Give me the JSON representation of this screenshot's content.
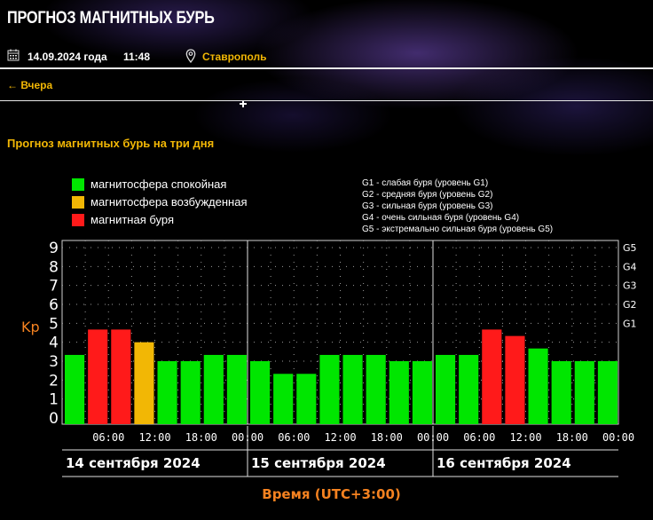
{
  "header": {
    "title": "ПРОГНОЗ МАГНИТНЫХ БУРЬ",
    "date": "14.09.2024 года",
    "time": "11:48",
    "city": "Ставрополь",
    "back_link": "← Вчера",
    "section_title": "Прогноз магнитных бурь на три дня"
  },
  "legend": {
    "items": [
      {
        "label": "магнитосфера спокойная",
        "color": "#00e600"
      },
      {
        "label": "магнитосфера возбужденная",
        "color": "#f2b705"
      },
      {
        "label": "магнитная буря",
        "color": "#ff1a1a"
      }
    ],
    "g_scale": [
      "G1 - слабая буря (уровень G1)",
      "G2 - средняя буря (уровень G2)",
      "G3 - сильная буря (уровень G3)",
      "G4 - очень сильная буря (уровень G4)",
      "G5 - экстремально сильная буря (уровень G5)"
    ]
  },
  "colors": {
    "accent": "#f2b705",
    "time_label": "#f58220",
    "calm": "#00e600",
    "excited": "#f2b705",
    "storm": "#ff1a1a"
  },
  "chart_data": {
    "type": "bar",
    "ylabel": "Kp",
    "xlabel": "Время (UTC+3:00)",
    "ylim": [
      0,
      9
    ],
    "yticks": [
      0,
      1,
      2,
      3,
      4,
      5,
      6,
      7,
      8,
      9
    ],
    "right_ticks": [
      {
        "value": 5,
        "label": "G1"
      },
      {
        "value": 6,
        "label": "G2"
      },
      {
        "value": 7,
        "label": "G3"
      },
      {
        "value": 8,
        "label": "G4"
      },
      {
        "value": 9,
        "label": "G5"
      }
    ],
    "x_tick_labels": [
      "06:00",
      "12:00",
      "18:00",
      "00:00",
      "06:00",
      "12:00",
      "18:00",
      "00:00",
      "06:00",
      "12:00",
      "18:00",
      "00:00"
    ],
    "days": [
      "14 сентября 2024",
      "15 сентября 2024",
      "16 сентября 2024"
    ],
    "values": [
      3.33,
      4.67,
      4.67,
      4.0,
      3.0,
      3.0,
      3.33,
      3.33,
      3.0,
      2.33,
      2.33,
      3.33,
      3.33,
      3.33,
      3.0,
      3.0,
      3.33,
      3.33,
      4.67,
      4.33,
      3.67,
      3.0,
      3.0,
      3.0
    ],
    "levels": [
      "calm",
      "storm",
      "storm",
      "excited",
      "calm",
      "calm",
      "calm",
      "calm",
      "calm",
      "calm",
      "calm",
      "calm",
      "calm",
      "calm",
      "calm",
      "calm",
      "calm",
      "calm",
      "storm",
      "storm",
      "calm",
      "calm",
      "calm",
      "calm"
    ],
    "grid": true
  }
}
